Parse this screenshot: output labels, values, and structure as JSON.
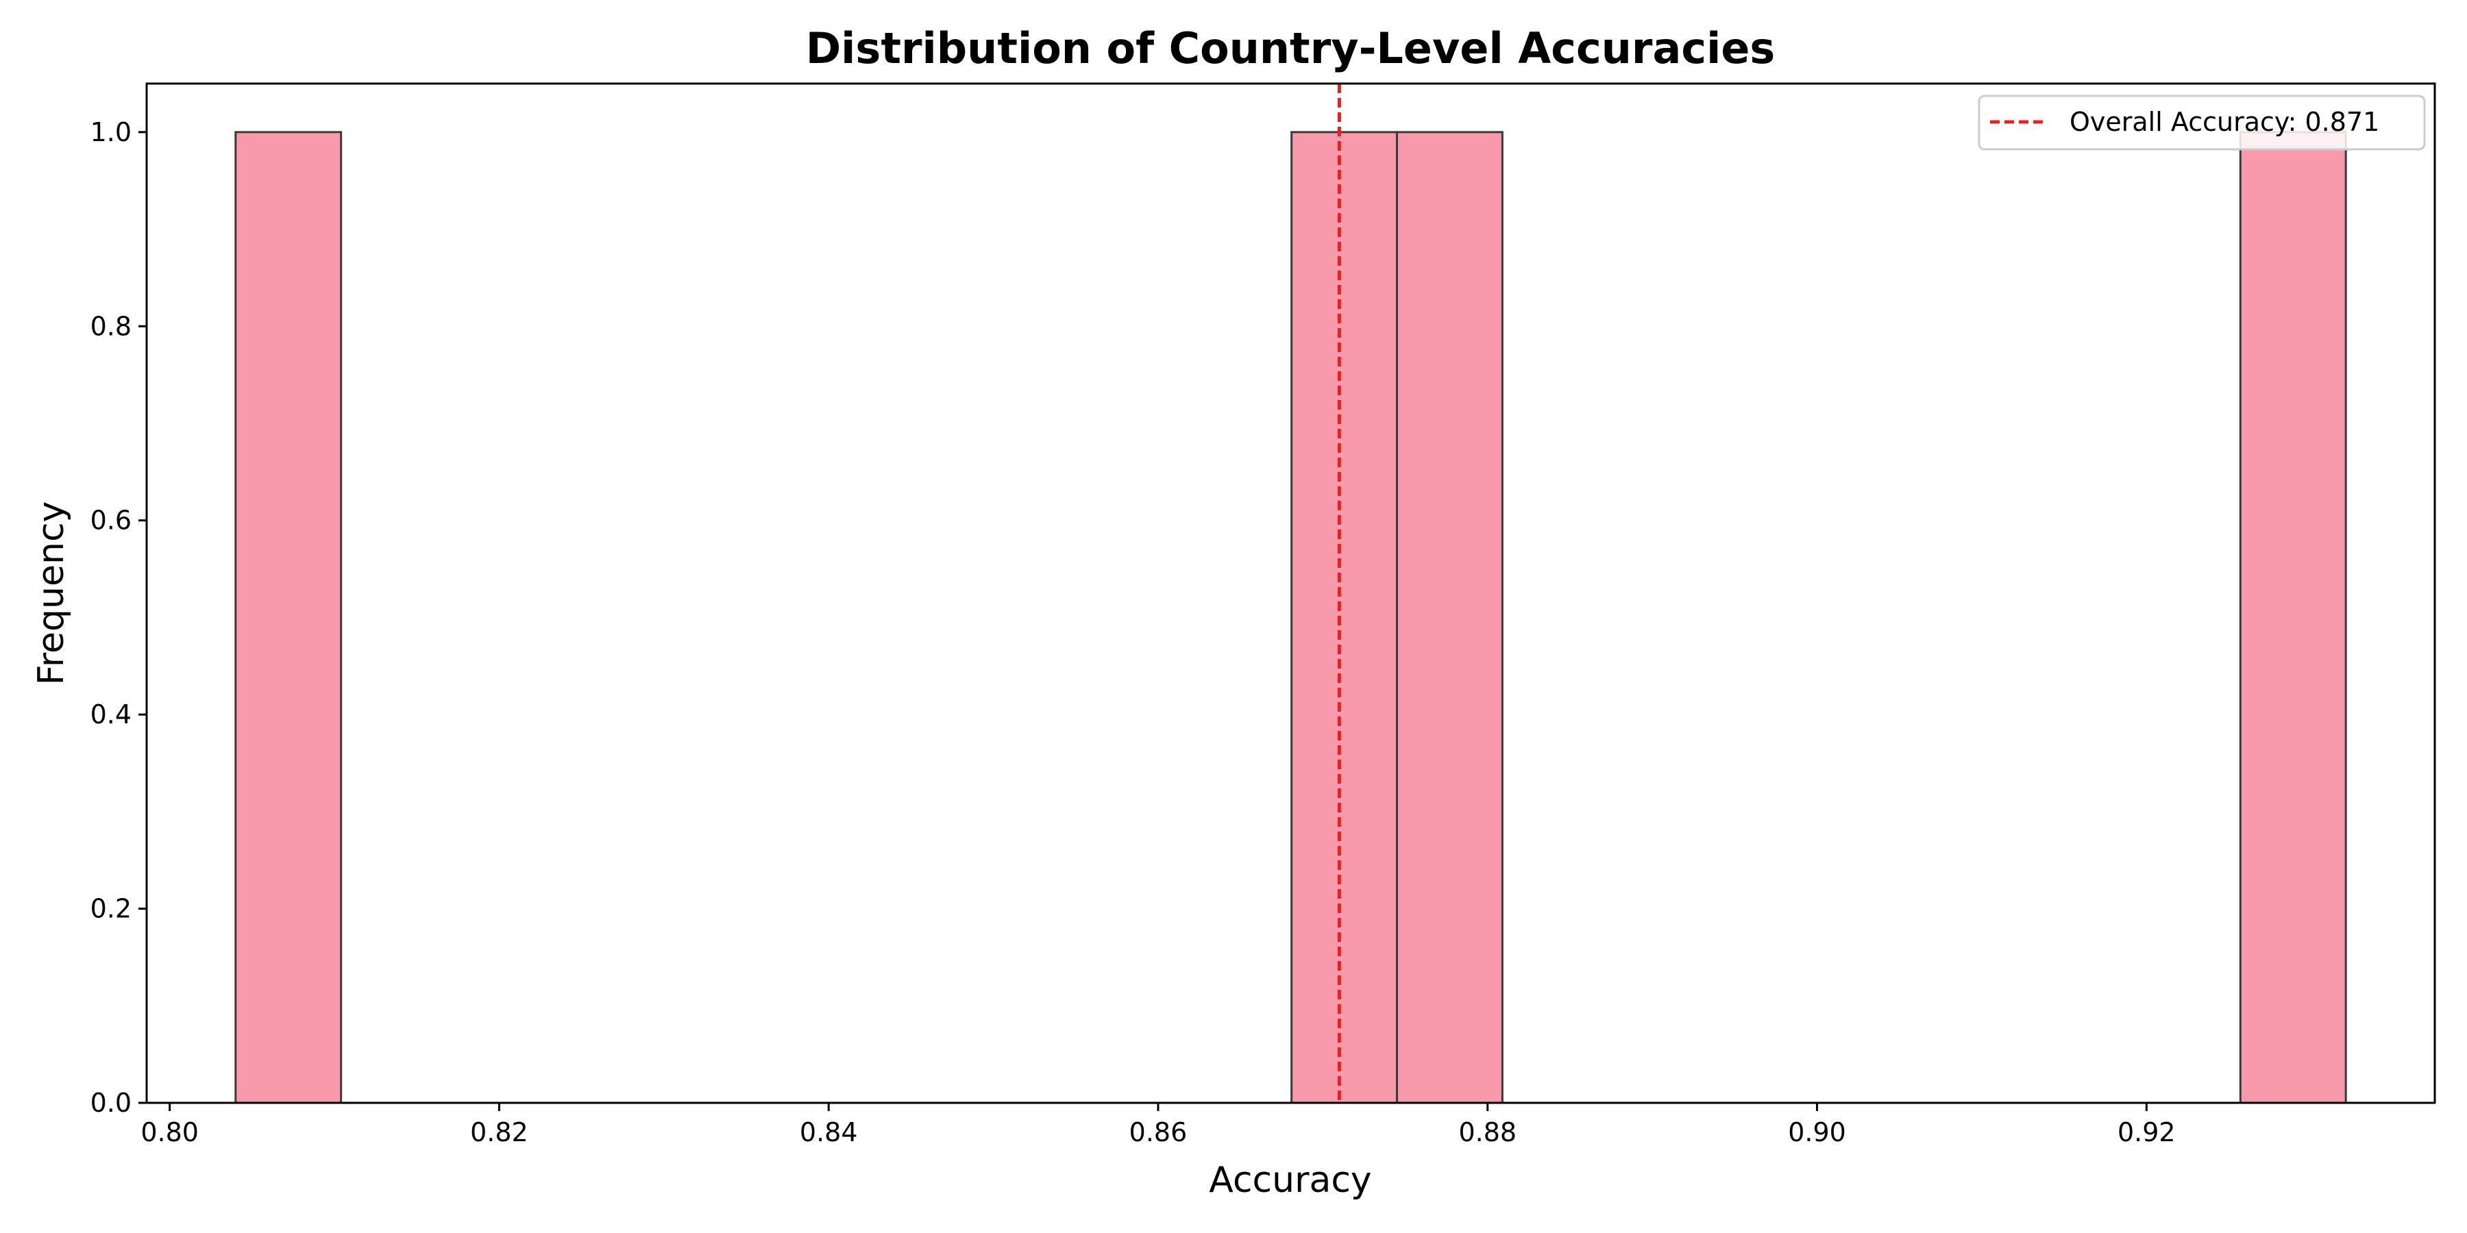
{
  "chart_data": {
    "type": "bar",
    "title": "Distribution of Country-Level Accuracies",
    "xlabel": "Accuracy",
    "ylabel": "Frequency",
    "xlim": [
      0.7986,
      0.9375
    ],
    "ylim": [
      0.0,
      1.05
    ],
    "xticks": [
      0.8,
      0.82,
      0.84,
      0.86,
      0.88,
      0.9,
      0.92
    ],
    "xtick_labels": [
      "0.80",
      "0.82",
      "0.84",
      "0.86",
      "0.88",
      "0.90",
      "0.92"
    ],
    "yticks": [
      0.0,
      0.2,
      0.4,
      0.6,
      0.8,
      1.0
    ],
    "ytick_labels": [
      "0.0",
      "0.2",
      "0.4",
      "0.6",
      "0.8",
      "1.0"
    ],
    "grid": false,
    "bins": [
      {
        "start": 0.804,
        "end": 0.8104,
        "count": 1
      },
      {
        "start": 0.8681,
        "end": 0.8745,
        "count": 1
      },
      {
        "start": 0.8745,
        "end": 0.8809,
        "count": 1
      },
      {
        "start": 0.9257,
        "end": 0.9321,
        "count": 1
      }
    ],
    "bar_color": "#f89aac",
    "bar_edge_color": "#3a3a3a",
    "reference_line": {
      "x": 0.871,
      "label": "Overall Accuracy: 0.871",
      "color": "#e8211f",
      "style": "dashed"
    },
    "legend_position": "top-right"
  }
}
